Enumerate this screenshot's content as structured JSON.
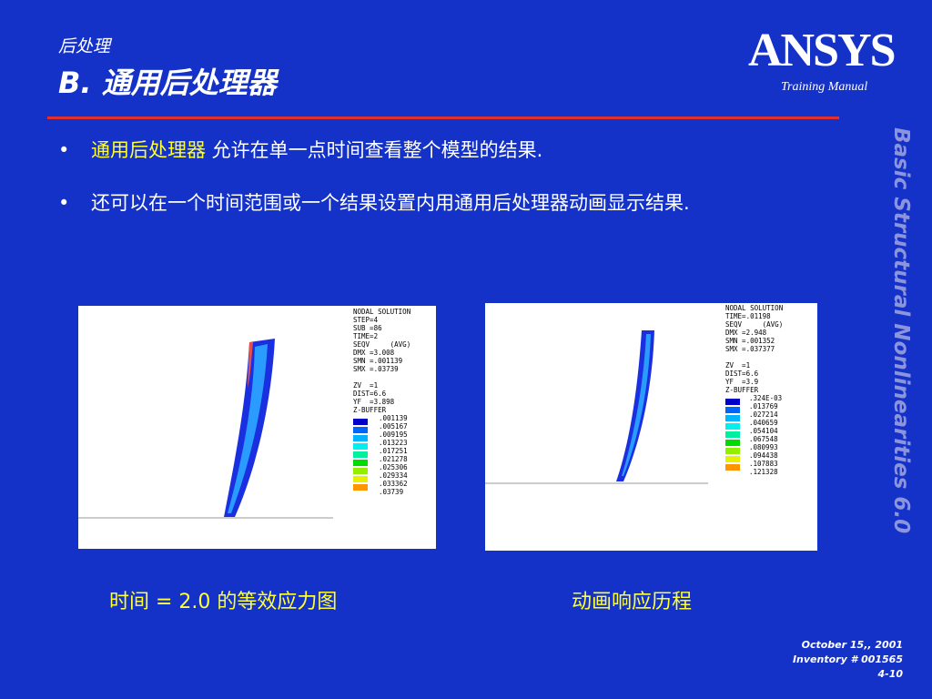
{
  "header": {
    "section": "后处理",
    "title": "B.  通用后处理器",
    "logo": "ANSYS",
    "subtitle": "Training Manual"
  },
  "bullets": [
    {
      "highlight": "通用后处理器",
      "text": " 允许在单一点时间查看整个模型的结果."
    },
    {
      "text": "还可以在一个时间范围或一个结果设置内用通用后处理器动画显示结果."
    }
  ],
  "side_text": "Basic Structural Nonlinearities 6.0",
  "panels": [
    {
      "info": [
        "NODAL SOLUTION",
        "STEP=4",
        "SUB =86",
        "TIME=2",
        "SEQV     (AVG)",
        "DMX =3.008",
        "SMN =.001139",
        "SMX =.03739"
      ],
      "view": [
        "ZV  =1",
        "DIST=6.6",
        "YF  =3.898",
        "Z-BUFFER"
      ],
      "legend": [
        ".001139",
        ".005167",
        ".009195",
        ".013223",
        ".017251",
        ".021278",
        ".025306",
        ".029334",
        ".033362",
        ".03739"
      ],
      "caption": "时间 = 2.0 的等效应力图"
    },
    {
      "info": [
        "NODAL SOLUTION",
        "TIME=.01198",
        "SEQV     (AVG)",
        "DMX =2.948",
        "SMN =.001352",
        "SMX =.037377"
      ],
      "view": [
        "ZV  =1",
        "DIST=6.6",
        "YF  =3.9",
        "Z-BUFFER"
      ],
      "legend": [
        ".324E-03",
        ".013769",
        ".027214",
        ".040659",
        ".054104",
        ".067548",
        ".080993",
        ".094438",
        ".107883",
        ".121328"
      ],
      "caption": "动画响应历程"
    }
  ],
  "footer": {
    "date": "October 15,, 2001",
    "inventory": "Inventory # 001565",
    "page": "4-10"
  }
}
